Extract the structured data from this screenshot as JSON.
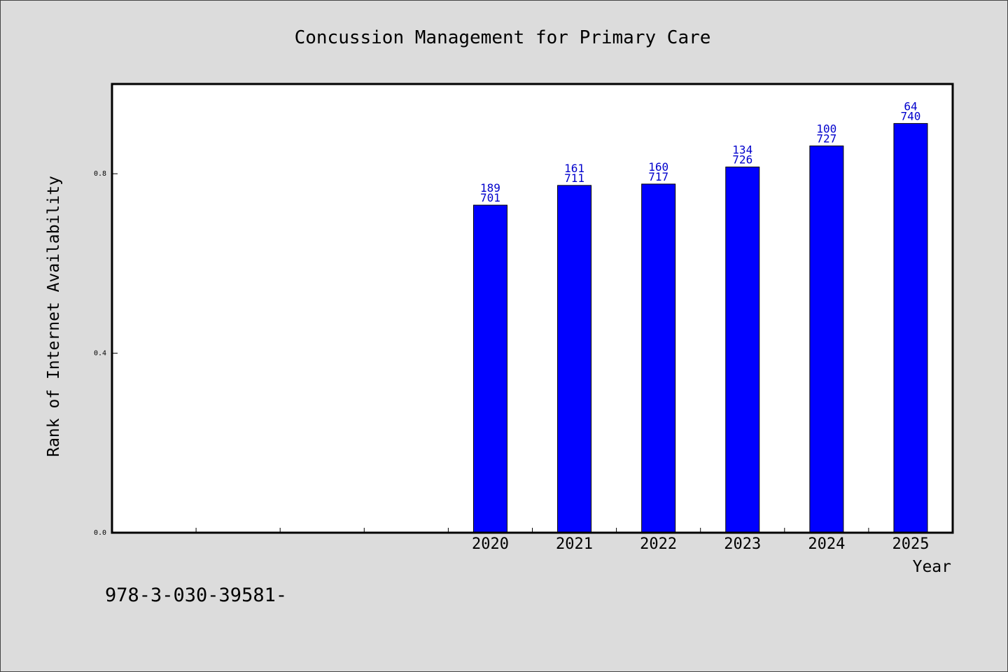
{
  "chart_data": {
    "type": "bar",
    "title": "Concussion Management for Primary Care",
    "xlabel": "Year",
    "ylabel": "Rank of Internet Availability",
    "categories": [
      "2020",
      "2021",
      "2022",
      "2023",
      "2024",
      "2025"
    ],
    "values": [
      0.73,
      0.774,
      0.777,
      0.815,
      0.862,
      0.912
    ],
    "label_top": [
      "189",
      "161",
      "160",
      "134",
      "100",
      "64"
    ],
    "label_bottom": [
      "701",
      "711",
      "717",
      "726",
      "727",
      "740"
    ],
    "empty_slots_before": 4,
    "yticks": [
      "0.0",
      "0.4",
      "0.8"
    ],
    "ytick_values": [
      0.0,
      0.4,
      0.8
    ],
    "ylim": [
      0,
      1.0
    ],
    "grid": false,
    "bar_color": "#0000ff",
    "label_color": "#0000cc"
  },
  "footnote": "978-3-030-39581-"
}
